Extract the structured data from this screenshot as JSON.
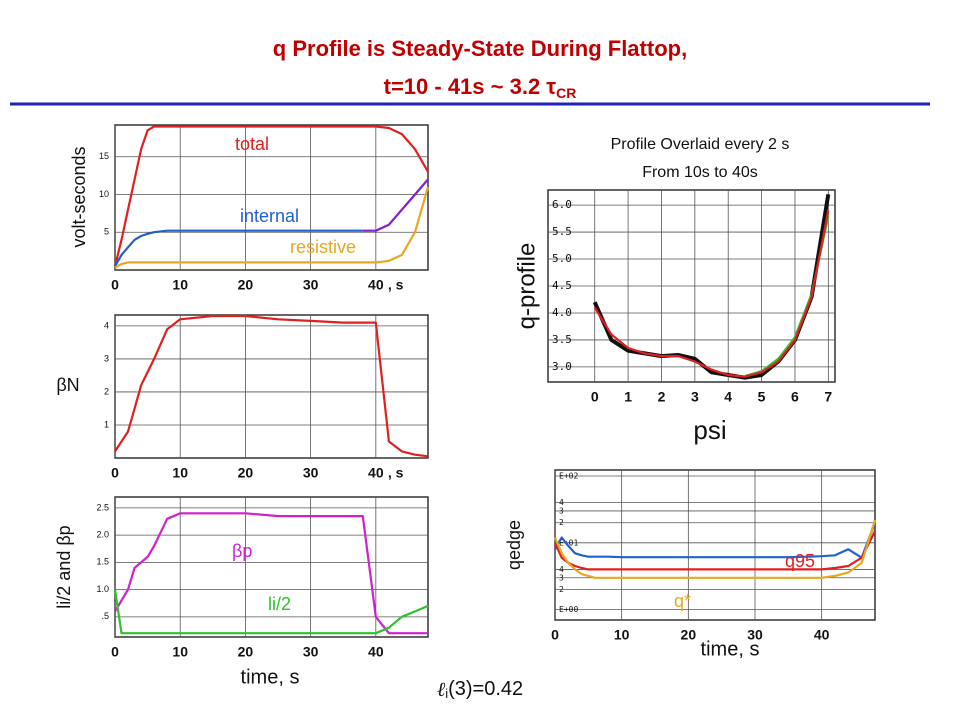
{
  "slide": {
    "title": [
      "q Profile is Steady-State During Flattop,",
      "t=10 - 41s  ~ 3.2 τ"
    ],
    "title_sub": "CR",
    "note": {
      "script": "ℓ",
      "sub": "i",
      "text": "(3)=0.42"
    }
  },
  "chart_data": [
    {
      "type": "line",
      "ylabel": "volt-seconds",
      "xlabel": ", s",
      "grid": true,
      "x": [
        0,
        1,
        2,
        3,
        4,
        5,
        6,
        8,
        10,
        15,
        20,
        25,
        30,
        35,
        38,
        40,
        42,
        44,
        46,
        48
      ],
      "xlim": [
        0,
        48
      ],
      "xticks": [
        0,
        10,
        20,
        30,
        40
      ],
      "ylim": [
        0,
        19.2
      ],
      "yticks": [
        5,
        10,
        15
      ],
      "series": [
        {
          "name": "total",
          "color": "#e02020",
          "values": [
            0.5,
            4,
            8,
            12,
            16,
            18.5,
            19,
            19,
            19,
            19,
            19,
            19,
            19,
            19,
            19,
            19,
            18.8,
            18,
            16,
            13
          ]
        },
        {
          "name": "internal",
          "color": "#2060d0",
          "values": [
            0.5,
            2,
            3,
            4,
            4.5,
            4.8,
            5,
            5.2,
            5.2,
            5.2,
            5.2,
            5.2,
            5.2,
            5.2,
            5.2,
            null,
            null,
            null,
            null,
            null
          ]
        },
        {
          "color": "#8020d0",
          "values": [
            null,
            null,
            null,
            null,
            null,
            null,
            null,
            null,
            null,
            null,
            null,
            null,
            null,
            null,
            5.2,
            5.2,
            6,
            8,
            10,
            12
          ]
        },
        {
          "name": "resistive",
          "color": "#e8a820",
          "values": [
            0.3,
            0.8,
            1,
            1,
            1,
            1,
            1,
            1,
            1,
            1,
            1,
            1,
            1,
            1,
            1,
            1,
            1.2,
            2,
            5,
            11
          ]
        }
      ]
    },
    {
      "type": "line",
      "ylabel": "βN",
      "xlabel": ", s",
      "grid": true,
      "x": [
        0,
        1,
        2,
        3,
        4,
        5,
        6,
        8,
        10,
        15,
        20,
        25,
        30,
        35,
        38,
        40,
        42,
        44,
        46,
        48
      ],
      "xlim": [
        0,
        48
      ],
      "xticks": [
        0,
        10,
        20,
        30,
        40
      ],
      "ylim": [
        0,
        4.33
      ],
      "yticks": [
        1,
        2,
        3,
        4
      ],
      "series": [
        {
          "color": "#e02020",
          "values": [
            0.2,
            0.5,
            0.8,
            1.5,
            2.2,
            2.6,
            3.0,
            3.9,
            4.2,
            4.3,
            4.3,
            4.2,
            4.15,
            4.1,
            4.1,
            4.1,
            0.5,
            0.2,
            0.1,
            0.05
          ]
        }
      ]
    },
    {
      "type": "line",
      "ylabel": "li/2 and βp",
      "xlabel": "time, s",
      "grid": true,
      "x": [
        0,
        1,
        2,
        3,
        4,
        5,
        6,
        8,
        10,
        15,
        20,
        25,
        30,
        35,
        38,
        40,
        42,
        44,
        46,
        48
      ],
      "xlim": [
        0,
        48
      ],
      "xticks": [
        0,
        10,
        20,
        30,
        40
      ],
      "ylim": [
        0.13,
        2.7
      ],
      "yticks": [
        {
          "value": 0.5,
          "label": ".5"
        },
        {
          "value": 1.0,
          "label": "1.0"
        },
        1.5,
        {
          "value": 2.0,
          "label": "2.0"
        },
        2.5
      ],
      "series": [
        {
          "name": "βp",
          "color": "#d020d0",
          "values": [
            0.6,
            0.8,
            1.0,
            1.4,
            1.5,
            1.6,
            1.8,
            2.3,
            2.4,
            2.4,
            2.4,
            2.35,
            2.35,
            2.35,
            2.35,
            0.5,
            0.2,
            0.2,
            0.2,
            0.2
          ]
        },
        {
          "name": "li/2",
          "color": "#30c030",
          "values": [
            1.0,
            0.2,
            0.2,
            0.2,
            0.2,
            0.2,
            0.2,
            0.2,
            0.2,
            0.2,
            0.2,
            0.2,
            0.2,
            0.2,
            0.2,
            0.2,
            0.3,
            0.5,
            0.6,
            0.7
          ]
        }
      ]
    },
    {
      "type": "line",
      "title": [
        "Profile Overlaid every 2 s",
        "From 10s to 40s"
      ],
      "ylabel": "q-profile",
      "xlabel": "psi",
      "grid": true,
      "x": [
        0,
        0.5,
        1,
        1.5,
        2,
        2.5,
        3,
        3.5,
        4,
        4.5,
        5,
        5.5,
        6,
        6.5,
        7
      ],
      "xlim": [
        -1.4,
        7.2
      ],
      "xticks": [
        0,
        1,
        2,
        3,
        4,
        5,
        6,
        7
      ],
      "ylim": [
        2.72,
        6.28
      ],
      "yticks": [
        {
          "value": 3.0,
          "label": "3.0"
        },
        3.5,
        {
          "value": 4.0,
          "label": "4.0"
        },
        4.5,
        {
          "value": 5.0,
          "label": "5.0"
        },
        5.5,
        {
          "value": 6.0,
          "label": "6.0"
        }
      ],
      "series": [
        {
          "color": "#111111",
          "values": [
            4.2,
            3.5,
            3.3,
            3.25,
            3.2,
            3.22,
            3.15,
            2.9,
            2.85,
            2.8,
            2.85,
            3.1,
            3.5,
            4.3,
            6.2
          ]
        },
        {
          "color": "#30c030",
          "values": [
            null,
            null,
            null,
            null,
            null,
            null,
            null,
            null,
            null,
            2.83,
            2.92,
            3.15,
            3.55,
            4.35,
            5.8
          ]
        },
        {
          "color": "#e02020",
          "values": [
            4.1,
            3.6,
            3.35,
            3.25,
            3.2,
            3.2,
            3.1,
            2.95,
            2.85,
            2.82,
            2.9,
            3.1,
            3.5,
            4.3,
            5.9
          ]
        }
      ]
    },
    {
      "type": "line",
      "ylabel": "qedge",
      "xlabel": "time, s",
      "grid": true,
      "log_y": true,
      "x": [
        0,
        1,
        2,
        3,
        4,
        5,
        6,
        8,
        10,
        15,
        20,
        25,
        30,
        35,
        38,
        40,
        42,
        44,
        46,
        48
      ],
      "xlim": [
        0,
        48
      ],
      "xticks": [
        0,
        10,
        20,
        30,
        40
      ],
      "ylim": [
        0.7,
        123
      ],
      "yticks": [
        {
          "value": 1,
          "label": "E+00"
        },
        2,
        3,
        4,
        {
          "value": 10,
          "label": "E+01"
        },
        {
          "value": 20,
          "label": "2"
        },
        {
          "value": 30,
          "label": "3"
        },
        {
          "value": 40,
          "label": "4"
        },
        {
          "value": 100,
          "label": "E+02"
        }
      ],
      "series": [
        {
          "color": "#2060d0",
          "values": [
            8,
            12,
            9,
            7,
            6.5,
            6.2,
            6.2,
            6.2,
            6.1,
            6.1,
            6.1,
            6.1,
            6.1,
            6.1,
            6.2,
            6.3,
            6.5,
            8,
            6,
            20
          ]
        },
        {
          "name": "q95",
          "color": "#e02020",
          "values": [
            10,
            6,
            5,
            4.5,
            4.2,
            4.0,
            4.0,
            4.0,
            4.0,
            4.0,
            4.0,
            4.0,
            4.0,
            4.0,
            4.0,
            4.0,
            4.2,
            4.5,
            6,
            15
          ]
        },
        {
          "name": "q*",
          "color": "#e8a820",
          "values": [
            12,
            7,
            5,
            4,
            3.4,
            3.2,
            3.0,
            3.0,
            3.0,
            3.0,
            3.0,
            3.0,
            3.0,
            3.0,
            3.0,
            3.0,
            3.2,
            3.6,
            5,
            22
          ]
        }
      ]
    }
  ]
}
